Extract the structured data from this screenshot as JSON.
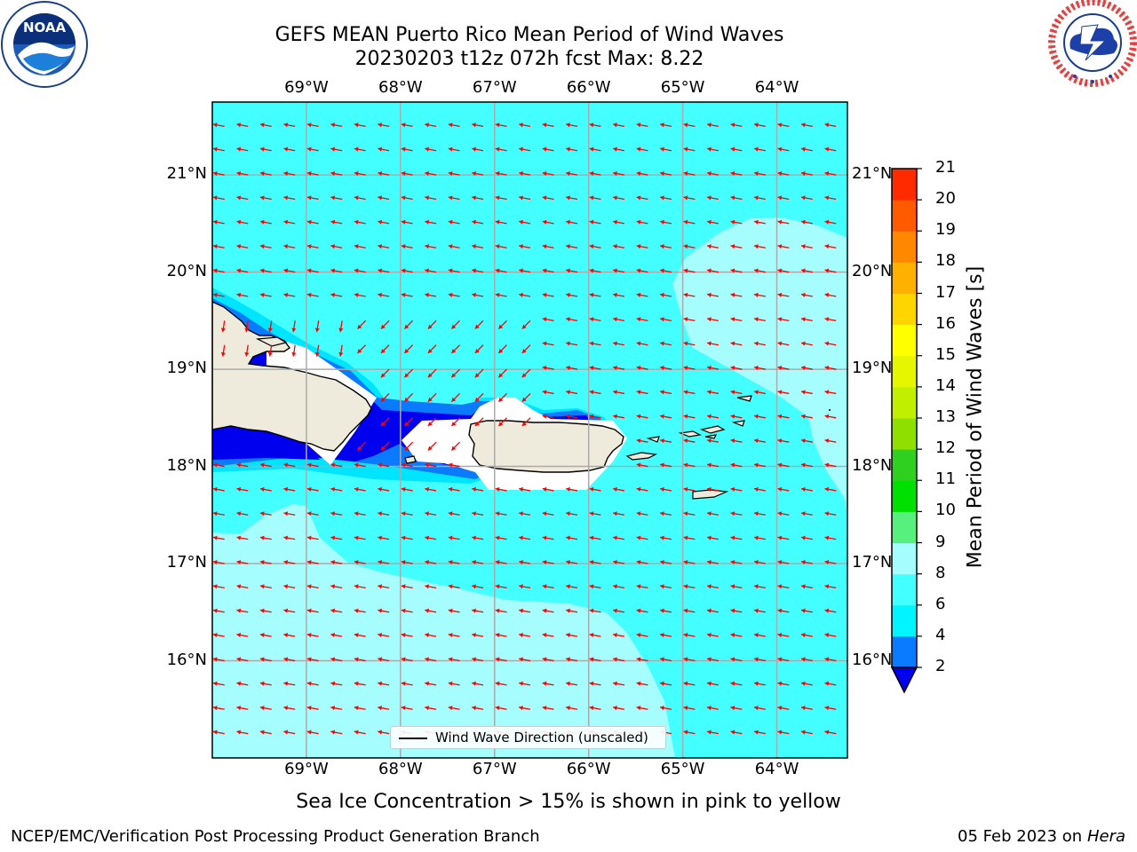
{
  "title_line1": "GEFS MEAN Puerto Rico Mean Period of Wind Waves",
  "title_line2": "20230203 t12z 072h fcst   Max: 8.22",
  "map": {
    "lon_min": -70.0,
    "lon_max": -63.25,
    "lat_min": 15.0,
    "lat_max": 21.75,
    "lon_ticks": [
      -69,
      -68,
      -67,
      -66,
      -65,
      -64
    ],
    "lat_ticks": [
      16,
      17,
      18,
      19,
      20,
      21
    ],
    "lon_tick_labels": [
      "69°W",
      "68°W",
      "67°W",
      "66°W",
      "65°W",
      "64°W"
    ],
    "lat_tick_labels": [
      "16°N",
      "17°N",
      "18°N",
      "19°N",
      "20°N",
      "21°N"
    ],
    "arrow_color": "#ff0000",
    "land_color": "#efebdc",
    "regions": [
      {
        "level": "6-8",
        "color": "#44ffff"
      },
      {
        "level": "8-9",
        "color": "#a6fdfd"
      },
      {
        "level": "4-6",
        "color": "#00e5ff"
      },
      {
        "level": "2-4",
        "color": "#0a7bff"
      },
      {
        "level": "<2",
        "color": "#0000ee"
      }
    ]
  },
  "colorbar": {
    "label": "Mean Period of Wind Waves [s]",
    "ticks": [
      "2",
      "4",
      "6",
      "8",
      "9",
      "10",
      "11",
      "12",
      "13",
      "14",
      "15",
      "16",
      "17",
      "18",
      "19",
      "20",
      "21"
    ],
    "colors": [
      "#0a7bff",
      "#00f5ff",
      "#44ffff",
      "#a6fdfd",
      "#55f07d",
      "#00e000",
      "#2fd020",
      "#8fe000",
      "#c0f000",
      "#e6f500",
      "#ffff00",
      "#ffd500",
      "#ffb000",
      "#ff8800",
      "#ff5a00",
      "#ff2a00"
    ],
    "under_color": "#0000ee",
    "top_color": "#ff0000"
  },
  "legend": {
    "label": "Wind Wave Direction (unscaled)"
  },
  "subtitle": "Sea Ice Concentration > 15% is shown in pink to yellow",
  "footer_left": "NCEP/EMC/Verification Post Processing Product Generation Branch",
  "footer_date": "05 Feb 2023 on",
  "footer_host": "Hera",
  "logos": {
    "noaa": {
      "text": "NOAA",
      "ring": "NATIONAL OCEANIC AND ATMOSPHERIC ADMINISTRATION · U.S. DEPARTMENT OF COMMERCE"
    },
    "nws": {
      "ring": "NATIONAL WEATHER SERVICE"
    }
  }
}
